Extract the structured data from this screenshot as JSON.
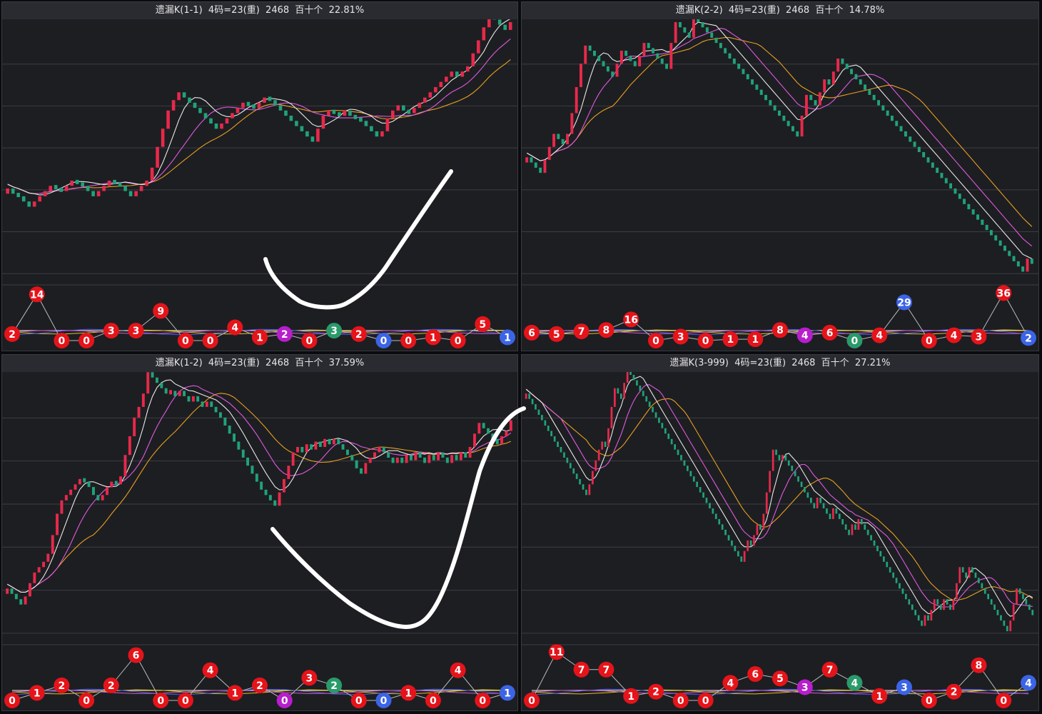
{
  "panels": [
    {
      "title": "遗漏K(1-1)  4码=23(重)  2468  百十个  22.81%",
      "chart_data": {
        "type": "candlestick",
        "kline": [
          0.36,
          0.34,
          0.33,
          0.31,
          0.29,
          0.31,
          0.33,
          0.35,
          0.37,
          0.36,
          0.35,
          0.37,
          0.39,
          0.38,
          0.37,
          0.35,
          0.33,
          0.35,
          0.37,
          0.39,
          0.38,
          0.37,
          0.35,
          0.33,
          0.35,
          0.37,
          0.39,
          0.44,
          0.52,
          0.59,
          0.66,
          0.7,
          0.73,
          0.71,
          0.69,
          0.67,
          0.65,
          0.63,
          0.61,
          0.59,
          0.61,
          0.63,
          0.65,
          0.67,
          0.69,
          0.68,
          0.67,
          0.69,
          0.71,
          0.7,
          0.68,
          0.66,
          0.64,
          0.62,
          0.6,
          0.58,
          0.56,
          0.54,
          0.59,
          0.64,
          0.66,
          0.65,
          0.64,
          0.66,
          0.64,
          0.63,
          0.62,
          0.6,
          0.58,
          0.56,
          0.58,
          0.63,
          0.66,
          0.68,
          0.66,
          0.65,
          0.67,
          0.69,
          0.71,
          0.73,
          0.75,
          0.77,
          0.79,
          0.81,
          0.79,
          0.81,
          0.83,
          0.88,
          0.93,
          0.98,
          1.03,
          1.01,
          0.99,
          0.97,
          1.0
        ],
        "balls": [
          {
            "label": "2",
            "value": 2,
            "color": "red"
          },
          {
            "label": "14",
            "value": 14,
            "color": "red"
          },
          {
            "label": "0",
            "value": 0,
            "color": "red"
          },
          {
            "label": "0",
            "value": 0,
            "color": "red"
          },
          {
            "label": "3",
            "value": 3,
            "color": "red"
          },
          {
            "label": "3",
            "value": 3,
            "color": "red"
          },
          {
            "label": "9",
            "value": 9,
            "color": "red"
          },
          {
            "label": "0",
            "value": 0,
            "color": "red"
          },
          {
            "label": "0",
            "value": 0,
            "color": "red"
          },
          {
            "label": "4",
            "value": 4,
            "color": "red"
          },
          {
            "label": "1",
            "value": 1,
            "color": "red"
          },
          {
            "label": "2",
            "value": 2,
            "color": "purple"
          },
          {
            "label": "0",
            "value": 0,
            "color": "red"
          },
          {
            "label": "3",
            "value": 3,
            "color": "green"
          },
          {
            "label": "2",
            "value": 2,
            "color": "red"
          },
          {
            "label": "0",
            "value": 0,
            "color": "blue"
          },
          {
            "label": "0",
            "value": 0,
            "color": "red"
          },
          {
            "label": "1",
            "value": 1,
            "color": "red"
          },
          {
            "label": "0",
            "value": 0,
            "color": "red"
          },
          {
            "label": "5",
            "value": 5,
            "color": "red"
          },
          {
            "label": "1",
            "value": 1,
            "color": "blue"
          }
        ],
        "ball_range": [
          0,
          16
        ]
      }
    },
    {
      "title": "遗漏K(2-2)  4码=23(重)  2468  百十个  14.78%",
      "chart_data": {
        "type": "candlestick",
        "kline": [
          0.48,
          0.46,
          0.44,
          0.42,
          0.47,
          0.52,
          0.57,
          0.55,
          0.53,
          0.57,
          0.65,
          0.75,
          0.84,
          0.91,
          0.89,
          0.87,
          0.85,
          0.83,
          0.81,
          0.79,
          0.84,
          0.89,
          0.87,
          0.85,
          0.83,
          0.87,
          0.92,
          0.9,
          0.88,
          0.86,
          0.84,
          0.82,
          0.92,
          1.0,
          0.98,
          0.96,
          0.94,
          1.02,
          1.0,
          0.98,
          0.96,
          0.94,
          0.92,
          0.9,
          0.88,
          0.86,
          0.84,
          0.82,
          0.8,
          0.78,
          0.76,
          0.74,
          0.72,
          0.7,
          0.68,
          0.66,
          0.64,
          0.62,
          0.6,
          0.58,
          0.56,
          0.64,
          0.72,
          0.7,
          0.68,
          0.73,
          0.78,
          0.76,
          0.81,
          0.86,
          0.84,
          0.82,
          0.8,
          0.78,
          0.76,
          0.74,
          0.72,
          0.7,
          0.68,
          0.66,
          0.64,
          0.62,
          0.6,
          0.58,
          0.56,
          0.54,
          0.52,
          0.5,
          0.48,
          0.46,
          0.44,
          0.42,
          0.4,
          0.38,
          0.36,
          0.34,
          0.32,
          0.3,
          0.28,
          0.26,
          0.24,
          0.22,
          0.2,
          0.18,
          0.16,
          0.14,
          0.12,
          0.1,
          0.08,
          0.06,
          0.04,
          0.09,
          0.07
        ],
        "balls": [
          {
            "label": "6",
            "value": 6,
            "color": "red"
          },
          {
            "label": "5",
            "value": 5,
            "color": "red"
          },
          {
            "label": "7",
            "value": 7,
            "color": "red"
          },
          {
            "label": "8",
            "value": 8,
            "color": "red"
          },
          {
            "label": "16",
            "value": 16,
            "color": "red"
          },
          {
            "label": "0",
            "value": 0,
            "color": "red"
          },
          {
            "label": "3",
            "value": 3,
            "color": "red"
          },
          {
            "label": "0",
            "value": 0,
            "color": "red"
          },
          {
            "label": "1",
            "value": 1,
            "color": "red"
          },
          {
            "label": "1",
            "value": 1,
            "color": "red"
          },
          {
            "label": "8",
            "value": 8,
            "color": "red"
          },
          {
            "label": "4",
            "value": 4,
            "color": "purple"
          },
          {
            "label": "6",
            "value": 6,
            "color": "red"
          },
          {
            "label": "0",
            "value": 0,
            "color": "green"
          },
          {
            "label": "4",
            "value": 4,
            "color": "red"
          },
          {
            "label": "29",
            "value": 29,
            "color": "blue"
          },
          {
            "label": "0",
            "value": 0,
            "color": "red"
          },
          {
            "label": "4",
            "value": 4,
            "color": "red"
          },
          {
            "label": "3",
            "value": 3,
            "color": "red"
          },
          {
            "label": "36",
            "value": 36,
            "color": "red"
          },
          {
            "label": "2",
            "value": 2,
            "color": "blue"
          }
        ],
        "ball_range": [
          0,
          40
        ]
      }
    },
    {
      "title": "遗漏K(1-2)  4码=23(重)  2468  百十个  37.59%",
      "chart_data": {
        "type": "candlestick",
        "kline": [
          0.2,
          0.18,
          0.16,
          0.14,
          0.17,
          0.22,
          0.26,
          0.28,
          0.3,
          0.33,
          0.4,
          0.48,
          0.53,
          0.55,
          0.57,
          0.59,
          0.61,
          0.6,
          0.58,
          0.55,
          0.53,
          0.55,
          0.58,
          0.6,
          0.59,
          0.62,
          0.7,
          0.77,
          0.84,
          0.88,
          0.93,
          1.01,
          0.99,
          0.97,
          0.95,
          0.93,
          0.94,
          0.92,
          0.94,
          0.92,
          0.9,
          0.92,
          0.9,
          0.88,
          0.9,
          0.88,
          0.86,
          0.84,
          0.81,
          0.78,
          0.75,
          0.72,
          0.69,
          0.66,
          0.63,
          0.6,
          0.57,
          0.55,
          0.53,
          0.51,
          0.56,
          0.61,
          0.66,
          0.71,
          0.73,
          0.71,
          0.74,
          0.72,
          0.75,
          0.73,
          0.76,
          0.74,
          0.76,
          0.74,
          0.72,
          0.7,
          0.68,
          0.65,
          0.63,
          0.67,
          0.69,
          0.71,
          0.73,
          0.71,
          0.69,
          0.67,
          0.69,
          0.67,
          0.7,
          0.68,
          0.71,
          0.69,
          0.67,
          0.7,
          0.68,
          0.71,
          0.69,
          0.67,
          0.7,
          0.68,
          0.71,
          0.69,
          0.73,
          0.78,
          0.82,
          0.8,
          0.78,
          0.76,
          0.74,
          0.77,
          0.79,
          0.83
        ],
        "balls": [
          {
            "label": "0",
            "value": 0,
            "color": "red"
          },
          {
            "label": "1",
            "value": 1,
            "color": "red"
          },
          {
            "label": "2",
            "value": 2,
            "color": "red"
          },
          {
            "label": "0",
            "value": 0,
            "color": "red"
          },
          {
            "label": "2",
            "value": 2,
            "color": "red"
          },
          {
            "label": "6",
            "value": 6,
            "color": "red"
          },
          {
            "label": "0",
            "value": 0,
            "color": "red"
          },
          {
            "label": "0",
            "value": 0,
            "color": "red"
          },
          {
            "label": "4",
            "value": 4,
            "color": "red"
          },
          {
            "label": "1",
            "value": 1,
            "color": "red"
          },
          {
            "label": "2",
            "value": 2,
            "color": "red"
          },
          {
            "label": "0",
            "value": 0,
            "color": "purple"
          },
          {
            "label": "3",
            "value": 3,
            "color": "red"
          },
          {
            "label": "2",
            "value": 2,
            "color": "green"
          },
          {
            "label": "0",
            "value": 0,
            "color": "red"
          },
          {
            "label": "0",
            "value": 0,
            "color": "blue"
          },
          {
            "label": "1",
            "value": 1,
            "color": "red"
          },
          {
            "label": "0",
            "value": 0,
            "color": "red"
          },
          {
            "label": "4",
            "value": 4,
            "color": "red"
          },
          {
            "label": "0",
            "value": 0,
            "color": "red"
          },
          {
            "label": "1",
            "value": 1,
            "color": "blue"
          }
        ],
        "ball_range": [
          0,
          7
        ]
      }
    },
    {
      "title": "遗漏K(3-999)  4码=23(重)  2468  百十个  27.21%",
      "chart_data": {
        "type": "candlestick",
        "kline": [
          0.93,
          0.91,
          0.89,
          0.87,
          0.85,
          0.83,
          0.81,
          0.79,
          0.77,
          0.75,
          0.73,
          0.71,
          0.69,
          0.67,
          0.65,
          0.63,
          0.61,
          0.59,
          0.57,
          0.55,
          0.59,
          0.64,
          0.68,
          0.72,
          0.75,
          0.73,
          0.8,
          0.88,
          0.95,
          0.93,
          0.91,
          0.97,
          1.02,
          1.0,
          0.98,
          0.96,
          0.94,
          0.92,
          0.9,
          0.88,
          0.86,
          0.84,
          0.82,
          0.8,
          0.78,
          0.76,
          0.74,
          0.72,
          0.7,
          0.68,
          0.66,
          0.64,
          0.62,
          0.6,
          0.58,
          0.56,
          0.54,
          0.52,
          0.5,
          0.48,
          0.46,
          0.44,
          0.42,
          0.4,
          0.38,
          0.36,
          0.34,
          0.32,
          0.3,
          0.34,
          0.38,
          0.36,
          0.4,
          0.44,
          0.42,
          0.48,
          0.56,
          0.64,
          0.72,
          0.7,
          0.68,
          0.7,
          0.68,
          0.66,
          0.64,
          0.62,
          0.6,
          0.58,
          0.56,
          0.54,
          0.52,
          0.5,
          0.54,
          0.52,
          0.5,
          0.48,
          0.46,
          0.5,
          0.48,
          0.46,
          0.44,
          0.42,
          0.4,
          0.44,
          0.42,
          0.46,
          0.44,
          0.42,
          0.4,
          0.38,
          0.36,
          0.34,
          0.32,
          0.3,
          0.28,
          0.26,
          0.24,
          0.22,
          0.2,
          0.18,
          0.16,
          0.14,
          0.12,
          0.1,
          0.08,
          0.06,
          0.1,
          0.08,
          0.12,
          0.16,
          0.14,
          0.12,
          0.16,
          0.14,
          0.12,
          0.16,
          0.22,
          0.28,
          0.26,
          0.24,
          0.28,
          0.26,
          0.24,
          0.22,
          0.2,
          0.18,
          0.16,
          0.14,
          0.12,
          0.1,
          0.08,
          0.06,
          0.04,
          0.08,
          0.14,
          0.2,
          0.18,
          0.16,
          0.14,
          0.12,
          0.1
        ],
        "balls": [
          {
            "label": "0",
            "value": 0,
            "color": "red"
          },
          {
            "label": "11",
            "value": 11,
            "color": "red"
          },
          {
            "label": "7",
            "value": 7,
            "color": "red"
          },
          {
            "label": "7",
            "value": 7,
            "color": "red"
          },
          {
            "label": "1",
            "value": 1,
            "color": "red"
          },
          {
            "label": "2",
            "value": 2,
            "color": "red"
          },
          {
            "label": "0",
            "value": 0,
            "color": "red"
          },
          {
            "label": "0",
            "value": 0,
            "color": "red"
          },
          {
            "label": "4",
            "value": 4,
            "color": "red"
          },
          {
            "label": "6",
            "value": 6,
            "color": "red"
          },
          {
            "label": "5",
            "value": 5,
            "color": "red"
          },
          {
            "label": "3",
            "value": 3,
            "color": "purple"
          },
          {
            "label": "7",
            "value": 7,
            "color": "red"
          },
          {
            "label": "4",
            "value": 4,
            "color": "green"
          },
          {
            "label": "1",
            "value": 1,
            "color": "red"
          },
          {
            "label": "3",
            "value": 3,
            "color": "blue"
          },
          {
            "label": "0",
            "value": 0,
            "color": "red"
          },
          {
            "label": "2",
            "value": 2,
            "color": "red"
          },
          {
            "label": "8",
            "value": 8,
            "color": "red"
          },
          {
            "label": "0",
            "value": 0,
            "color": "red"
          },
          {
            "label": "4",
            "value": 4,
            "color": "blue"
          }
        ],
        "ball_range": [
          0,
          12
        ]
      }
    }
  ],
  "colors": {
    "up": "#e8294a",
    "down": "#1fa37a",
    "ma5": "#e8e8e8",
    "ma10": "#e05ae0",
    "ma20": "#e8a020",
    "grid": "#3c3d42",
    "ball_red": "#e5141a",
    "ball_purple": "#b81ecc",
    "ball_green": "#2a9a6a",
    "ball_blue": "#3c64e6",
    "annotation": "#ffffff"
  }
}
